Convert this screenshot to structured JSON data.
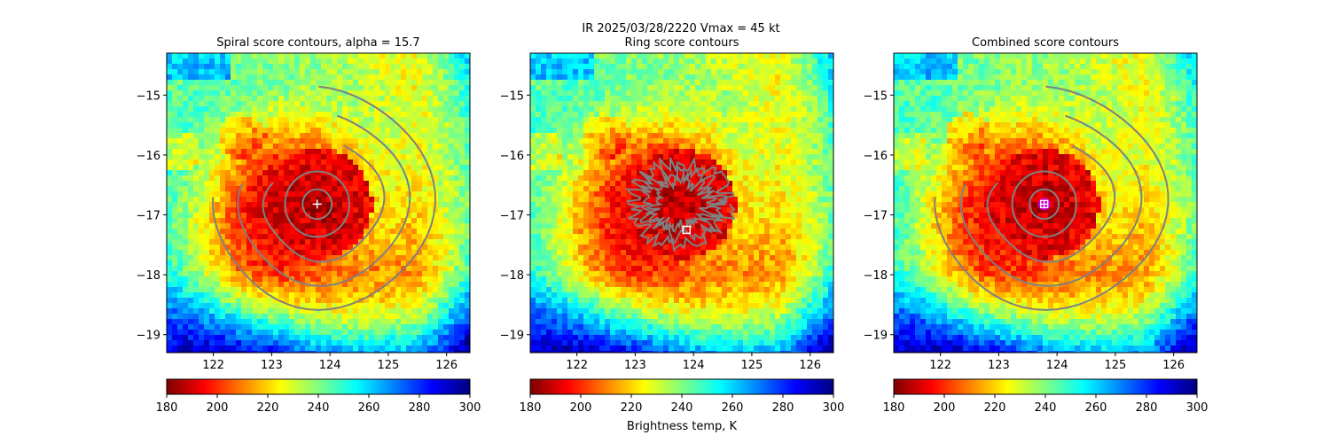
{
  "suptitle": {
    "line1": "IR  2025/03/28/2220    Vmax = 45 kt"
  },
  "colorbar_label": "Brightness temp, K",
  "colormap": {
    "name": "jet_r",
    "vmin": 180,
    "vmax": 300,
    "stops": [
      "#7f0000",
      "#ff0000",
      "#ff8000",
      "#ffff00",
      "#80ff80",
      "#00ffff",
      "#0080ff",
      "#0000ff",
      "#00007f"
    ]
  },
  "chart_data": [
    {
      "type": "heatmap",
      "title": "Spiral score contours, alpha = 15.7",
      "xlim": [
        121.2,
        126.4
      ],
      "ylim": [
        -19.3,
        -14.3
      ],
      "xticks": [
        122,
        123,
        124,
        125,
        126
      ],
      "yticks": [
        -15,
        -16,
        -17,
        -18,
        -19
      ],
      "center": {
        "lon": 123.78,
        "lat": -16.82
      },
      "marker": {
        "type": "plus",
        "lon": 123.78,
        "lat": -16.82,
        "color": "#ffffff"
      },
      "contour_color": "#808080",
      "contours": {
        "rings_deg": [
          0.25,
          0.55
        ],
        "spiral_arms_count": 3
      },
      "colorbar": {
        "ticks": [
          180,
          200,
          220,
          240,
          260,
          280,
          300
        ]
      }
    },
    {
      "type": "heatmap",
      "title": "Ring score contours",
      "xlim": [
        121.2,
        126.4
      ],
      "ylim": [
        -19.3,
        -14.3
      ],
      "xticks": [
        122,
        123,
        124,
        125,
        126
      ],
      "yticks": [
        -15,
        -16,
        -17,
        -18,
        -19
      ],
      "center": {
        "lon": 123.78,
        "lat": -16.82
      },
      "marker": {
        "type": "square",
        "lon": 123.88,
        "lat": -17.25,
        "color": "#ffffff"
      },
      "contour_color": "#808080",
      "contours": {
        "style": "noisy_ring",
        "radius_deg": 0.85
      },
      "colorbar": {
        "ticks": [
          180,
          200,
          220,
          240,
          260,
          280,
          300
        ]
      }
    },
    {
      "type": "heatmap",
      "title": "Combined score contours",
      "xlim": [
        121.2,
        126.4
      ],
      "ylim": [
        -19.3,
        -14.3
      ],
      "xticks": [
        122,
        123,
        124,
        125,
        126
      ],
      "yticks": [
        -15,
        -16,
        -17,
        -18,
        -19
      ],
      "center": {
        "lon": 123.78,
        "lat": -16.82
      },
      "marker": {
        "type": "circled-square-plus",
        "lon": 123.78,
        "lat": -16.82,
        "color": "#ffffff",
        "ring_color": "#cc00cc"
      },
      "contour_color": "#808080",
      "contours": {
        "rings_deg": [
          0.25,
          0.55
        ],
        "spiral_arms_count": 3
      },
      "colorbar": {
        "ticks": [
          180,
          200,
          220,
          240,
          260,
          280,
          300
        ]
      }
    }
  ]
}
